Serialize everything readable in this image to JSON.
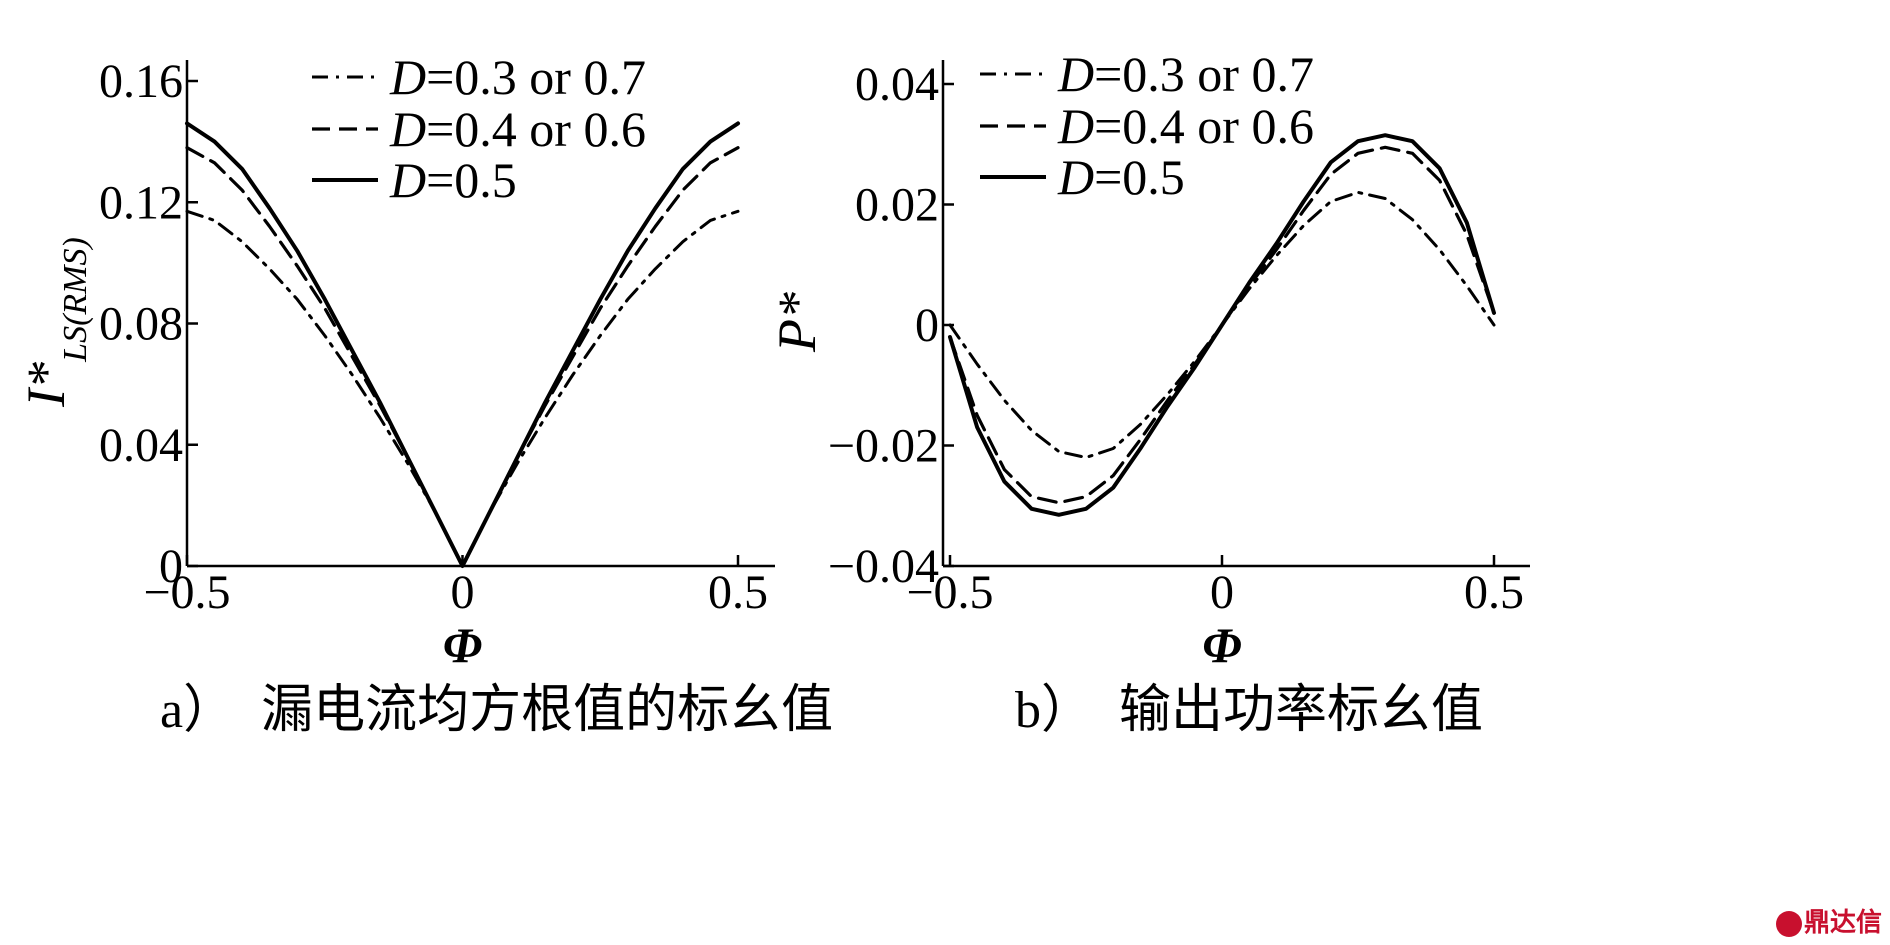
{
  "chart_data": [
    {
      "type": "line",
      "caption": "a）　漏电流均方根值的标幺值",
      "xlabel": "Φ",
      "ylabel": "I*",
      "ylabel_sub": "LS(RMS)",
      "xlim": [
        -0.5,
        0.5
      ],
      "ylim": [
        0,
        0.16
      ],
      "xticks": [
        -0.5,
        0,
        0.5
      ],
      "xtick_labels": [
        "−0.5",
        "0",
        "0.5"
      ],
      "yticks": [
        0,
        0.04,
        0.08,
        0.12,
        0.16
      ],
      "ytick_labels": [
        "0",
        "0.04",
        "0.08",
        "0.12",
        "0.16"
      ],
      "legend_placement": "top-center",
      "series": [
        {
          "name": "D=0.3 or 0.7",
          "name_italic": "D",
          "name_rest": "=0.3 or 0.7",
          "style": "dashdot",
          "x": [
            -0.5,
            -0.45,
            -0.4,
            -0.35,
            -0.3,
            -0.25,
            -0.2,
            -0.15,
            -0.1,
            -0.05,
            0,
            0.05,
            0.1,
            0.15,
            0.2,
            0.25,
            0.3,
            0.35,
            0.4,
            0.45,
            0.5
          ],
          "y": [
            0.117,
            0.114,
            0.107,
            0.098,
            0.088,
            0.076,
            0.063,
            0.049,
            0.034,
            0.018,
            0,
            0.018,
            0.034,
            0.049,
            0.063,
            0.076,
            0.088,
            0.098,
            0.107,
            0.114,
            0.117
          ]
        },
        {
          "name": "D=0.4 or 0.6",
          "name_italic": "D",
          "name_rest": "=0.4 or 0.6",
          "style": "dashed",
          "x": [
            -0.5,
            -0.45,
            -0.4,
            -0.35,
            -0.3,
            -0.25,
            -0.2,
            -0.15,
            -0.1,
            -0.05,
            0,
            0.05,
            0.1,
            0.15,
            0.2,
            0.25,
            0.3,
            0.35,
            0.4,
            0.45,
            0.5
          ],
          "y": [
            0.138,
            0.133,
            0.124,
            0.112,
            0.099,
            0.085,
            0.069,
            0.053,
            0.036,
            0.018,
            0,
            0.018,
            0.036,
            0.053,
            0.069,
            0.085,
            0.099,
            0.112,
            0.124,
            0.133,
            0.138
          ]
        },
        {
          "name": "D=0.5",
          "name_italic": "D",
          "name_rest": "=0.5",
          "style": "solid",
          "x": [
            -0.5,
            -0.45,
            -0.4,
            -0.35,
            -0.3,
            -0.25,
            -0.2,
            -0.15,
            -0.1,
            -0.05,
            0,
            0.05,
            0.1,
            0.15,
            0.2,
            0.25,
            0.3,
            0.35,
            0.4,
            0.45,
            0.5
          ],
          "y": [
            0.146,
            0.14,
            0.131,
            0.118,
            0.104,
            0.088,
            0.071,
            0.054,
            0.036,
            0.018,
            0,
            0.018,
            0.036,
            0.054,
            0.071,
            0.088,
            0.104,
            0.118,
            0.131,
            0.14,
            0.146
          ]
        }
      ]
    },
    {
      "type": "line",
      "caption": "b）　输出功率标幺值",
      "xlabel": "Φ",
      "ylabel": "P*",
      "xlim": [
        -0.5,
        0.5
      ],
      "ylim": [
        -0.04,
        0.04
      ],
      "xticks": [
        -0.5,
        0,
        0.5
      ],
      "xtick_labels": [
        "−0.5",
        "0",
        "0.5"
      ],
      "yticks": [
        -0.04,
        -0.02,
        0,
        0.02,
        0.04
      ],
      "ytick_labels": [
        "−0.04",
        "−0.02",
        "0",
        "0.02",
        "0.04"
      ],
      "legend_placement": "top-left",
      "series": [
        {
          "name": "D=0.3 or 0.7",
          "name_italic": "D",
          "name_rest": "=0.3 or 0.7",
          "style": "dashdot",
          "x": [
            -0.5,
            -0.45,
            -0.4,
            -0.35,
            -0.3,
            -0.25,
            -0.2,
            -0.15,
            -0.1,
            -0.05,
            0,
            0.05,
            0.1,
            0.15,
            0.2,
            0.25,
            0.3,
            0.35,
            0.4,
            0.45,
            0.5
          ],
          "y": [
            0.0,
            -0.0065,
            -0.0125,
            -0.0175,
            -0.021,
            -0.022,
            -0.0205,
            -0.0165,
            -0.0115,
            -0.006,
            0.0,
            0.006,
            0.0115,
            0.0165,
            0.0205,
            0.022,
            0.021,
            0.0175,
            0.0125,
            0.0065,
            0.0
          ]
        },
        {
          "name": "D=0.4 or 0.6",
          "name_italic": "D",
          "name_rest": "=0.4 or 0.6",
          "style": "dashed",
          "x": [
            -0.5,
            -0.45,
            -0.4,
            -0.35,
            -0.3,
            -0.25,
            -0.2,
            -0.15,
            -0.1,
            -0.05,
            0,
            0.05,
            0.1,
            0.15,
            0.2,
            0.25,
            0.3,
            0.35,
            0.4,
            0.45,
            0.5
          ],
          "y": [
            -0.002,
            -0.015,
            -0.024,
            -0.0285,
            -0.0295,
            -0.0285,
            -0.025,
            -0.019,
            -0.0125,
            -0.0065,
            0.0,
            0.0065,
            0.0125,
            0.019,
            0.025,
            0.0285,
            0.0295,
            0.0285,
            0.024,
            0.015,
            0.002
          ]
        },
        {
          "name": "D=0.5",
          "name_italic": "D",
          "name_rest": "=0.5",
          "style": "solid",
          "x": [
            -0.5,
            -0.45,
            -0.4,
            -0.35,
            -0.3,
            -0.25,
            -0.2,
            -0.15,
            -0.1,
            -0.05,
            0,
            0.05,
            0.1,
            0.15,
            0.2,
            0.25,
            0.3,
            0.35,
            0.4,
            0.45,
            0.5
          ],
          "y": [
            -0.002,
            -0.017,
            -0.026,
            -0.0305,
            -0.0315,
            -0.0305,
            -0.027,
            -0.0205,
            -0.0135,
            -0.007,
            0.0,
            0.007,
            0.0135,
            0.0205,
            0.027,
            0.0305,
            0.0315,
            0.0305,
            0.026,
            0.017,
            0.002
          ]
        }
      ]
    }
  ],
  "watermark": {
    "text": "鼎达信"
  }
}
